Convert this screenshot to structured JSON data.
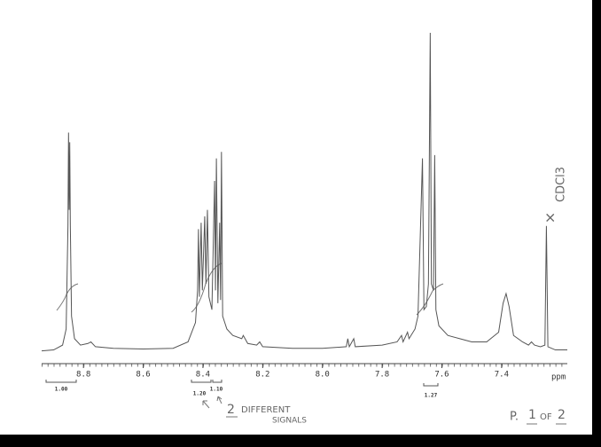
{
  "chart_data": {
    "type": "line",
    "x_label": "ppm",
    "xlim": [
      8.94,
      7.18
    ],
    "ylim": [
      0,
      100
    ],
    "xticks": [
      8.8,
      8.6,
      8.4,
      8.2,
      {
        "value": 8,
        "label": "8.0"
      },
      7.8,
      7.6,
      7.4
    ],
    "series": [
      {
        "color": "#555555",
        "x": [
          8.94,
          8.9,
          8.87,
          8.858,
          8.852,
          8.85,
          8.848,
          8.846,
          8.844,
          8.84,
          8.83,
          8.81,
          8.785,
          8.775,
          8.76,
          8.7,
          8.6,
          8.5,
          8.45,
          8.425,
          8.418,
          8.415,
          8.412,
          8.406,
          8.402,
          8.394,
          8.39,
          8.385,
          8.38,
          8.37,
          8.361,
          8.358,
          8.355,
          8.35,
          8.344,
          8.341,
          8.338,
          8.334,
          8.32,
          8.3,
          8.27,
          8.265,
          8.25,
          8.22,
          8.21,
          8.2,
          8.1,
          8.0,
          7.92,
          7.915,
          7.91,
          7.895,
          7.89,
          7.8,
          7.75,
          7.735,
          7.73,
          7.715,
          7.71,
          7.69,
          7.68,
          7.665,
          7.66,
          7.652,
          7.645,
          7.639,
          7.635,
          7.628,
          7.624,
          7.62,
          7.61,
          7.58,
          7.54,
          7.5,
          7.45,
          7.41,
          7.395,
          7.385,
          7.375,
          7.36,
          7.33,
          7.31,
          7.3,
          7.29,
          7.27,
          7.255,
          7.25,
          7.245,
          7.22,
          7.18
        ],
        "values": [
          1.2,
          1.5,
          3,
          8,
          40,
          69,
          45,
          66,
          40,
          12,
          5,
          3,
          3.5,
          4,
          2.5,
          2,
          1.8,
          2,
          4,
          10,
          20,
          39,
          18,
          41,
          20,
          43,
          22,
          45,
          18,
          14,
          54,
          20,
          61,
          16,
          41,
          17,
          63,
          12,
          8,
          6,
          5,
          6,
          3.5,
          3,
          4,
          2.5,
          2,
          2,
          2.5,
          5,
          2.5,
          5,
          2.5,
          3,
          4,
          6,
          4,
          7,
          5,
          8,
          12,
          61,
          14,
          15,
          22,
          100,
          22,
          20,
          62,
          14,
          9,
          6,
          5,
          4,
          4,
          7,
          16,
          19,
          15,
          6,
          4,
          3,
          4,
          3,
          2.5,
          3,
          40,
          2.5,
          1.5,
          1.5
        ]
      }
    ],
    "integral_labels": [
      "1.00",
      "1.20",
      "1.10",
      "1.27"
    ],
    "annotations": [
      "CDCl3",
      "2",
      "DIFFERENT",
      "SIGNALS",
      "P.",
      "1",
      "OF",
      "2"
    ]
  }
}
